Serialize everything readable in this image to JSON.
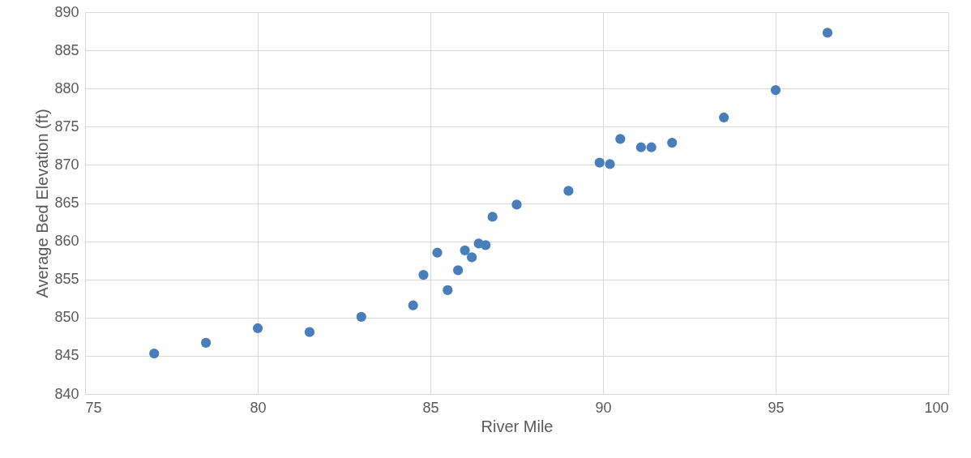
{
  "chart_data": {
    "type": "scatter",
    "xlabel": "River Mile",
    "ylabel": "Average Bed Elevation (ft)",
    "x": [
      77,
      78.5,
      80,
      81.5,
      83,
      84.5,
      84.8,
      85.2,
      85.5,
      85.8,
      86,
      86.2,
      86.4,
      86.6,
      86.8,
      87.5,
      89,
      89.9,
      90.2,
      90.5,
      91.1,
      91.4,
      92,
      93.5,
      95,
      96.5
    ],
    "series": [
      {
        "color": "#4a7ebb",
        "values": [
          845.3,
          846.7,
          848.6,
          848.1,
          850.1,
          851.6,
          855.6,
          858.5,
          853.6,
          856.2,
          858.8,
          857.9,
          859.7,
          859.5,
          863.2,
          864.8,
          866.6,
          870.3,
          870.1,
          873.4,
          872.3,
          872.3,
          872.9,
          876.2,
          879.8,
          887.3
        ]
      }
    ],
    "xlim": [
      75,
      100
    ],
    "xticks": [
      75,
      80,
      85,
      90,
      95,
      100
    ],
    "ylim": [
      840,
      890
    ],
    "yticks": [
      840,
      845,
      850,
      855,
      860,
      865,
      870,
      875,
      880,
      885,
      890
    ],
    "grid": true,
    "marker": "circle"
  }
}
